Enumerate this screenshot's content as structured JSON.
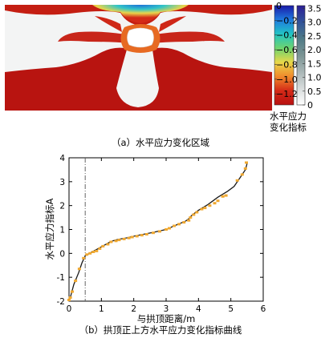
{
  "panel_a": {
    "caption": "（a）水平应力变化区域",
    "colorbar_left": {
      "ticks": [
        0,
        -0.2,
        -0.4,
        -0.6,
        -0.8,
        -1.0,
        -1.2
      ],
      "tick_labels": [
        "0",
        "−0.2",
        "−0.4",
        "−0.6",
        "−0.8",
        "−1.0",
        "−1.2"
      ],
      "range": [
        -1.35,
        0
      ],
      "colors": [
        "#1a1aa8",
        "#1f7be0",
        "#22c4c4",
        "#6ed36e",
        "#e8d84a",
        "#f08a2c",
        "#d42a18",
        "#b81010"
      ]
    },
    "colorbar_right": {
      "ticks": [
        3.5,
        3.0,
        2.5,
        2.0,
        1.5,
        1.0,
        0.5,
        0
      ],
      "tick_labels": [
        "3.5",
        "3.0",
        "2.5",
        "2.0",
        "1.5",
        "1.0",
        "0.5",
        "0"
      ],
      "range": [
        0,
        3.6
      ],
      "colors": [
        "#ffffff",
        "#d8dcdc",
        "#a9b6b6",
        "#7b9494",
        "#4f7a86",
        "#30539a",
        "#2b1e96"
      ]
    },
    "colorbar_label_lines": [
      "水平应力",
      "变化指标"
    ]
  },
  "panel_b": {
    "caption": "（b）拱顶正上方水平应力变化指标曲线",
    "colors": {
      "line": "#1a1a1a",
      "points": "#f0a830",
      "dashline": "#555555"
    }
  },
  "chart_data": {
    "type": "line",
    "xlabel": "与拱顶距离/m",
    "ylabel": "水平应力指标A",
    "xlim": [
      0,
      6
    ],
    "ylim": [
      -2,
      4
    ],
    "xticks": [
      0,
      1,
      2,
      3,
      4,
      5,
      6
    ],
    "yticks": [
      -2,
      -1,
      0,
      1,
      2,
      3,
      4
    ],
    "grid": false,
    "vline_x": 0.5,
    "series": [
      {
        "line": {
          "x": [
            0,
            0.05,
            0.15,
            0.3,
            0.4,
            0.5,
            0.7,
            0.9,
            1.1,
            1.3,
            1.5,
            1.8,
            2.0,
            2.3,
            2.6,
            3.0,
            3.3,
            3.6,
            3.7,
            3.8,
            4.0,
            4.3,
            4.6,
            4.9,
            5.1,
            5.3,
            5.45,
            5.5
          ],
          "y": [
            -2.0,
            -1.8,
            -1.3,
            -0.8,
            -0.4,
            -0.1,
            0.05,
            0.2,
            0.35,
            0.5,
            0.58,
            0.65,
            0.72,
            0.8,
            0.88,
            1.0,
            1.18,
            1.35,
            1.45,
            1.6,
            1.8,
            2.05,
            2.35,
            2.6,
            2.8,
            3.2,
            3.5,
            3.75
          ]
        },
        "points": {
          "x": [
            0,
            0.04,
            0.1,
            0.2,
            0.32,
            0.45,
            0.55,
            0.65,
            0.75,
            0.85,
            0.95,
            1.05,
            1.2,
            1.3,
            1.45,
            1.55,
            1.7,
            1.85,
            1.95,
            2.1,
            2.25,
            2.4,
            2.6,
            2.8,
            3.0,
            3.1,
            3.25,
            3.4,
            3.55,
            3.7,
            3.75,
            3.85,
            3.95,
            4.1,
            4.2,
            4.35,
            4.5,
            4.6,
            4.75,
            4.85,
            5.2,
            5.35,
            5.45,
            5.48
          ],
          "y": [
            -1.95,
            -1.85,
            -1.6,
            -1.15,
            -0.65,
            -0.2,
            -0.05,
            0.0,
            0.06,
            0.1,
            0.2,
            0.3,
            0.38,
            0.48,
            0.52,
            0.56,
            0.6,
            0.64,
            0.68,
            0.72,
            0.76,
            0.8,
            0.86,
            0.92,
            1.0,
            1.05,
            1.15,
            1.22,
            1.3,
            1.38,
            1.5,
            1.62,
            1.72,
            1.85,
            1.9,
            2.0,
            2.1,
            2.2,
            2.38,
            2.42,
            3.05,
            3.3,
            3.55,
            3.8
          ]
        }
      }
    ]
  }
}
